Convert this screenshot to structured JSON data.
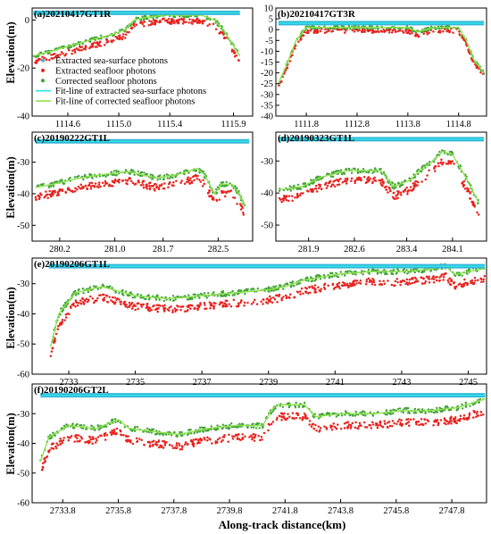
{
  "figure": {
    "xlabel": "Along-track distance(km)",
    "ylabel": "Elevation(m)"
  },
  "legend": {
    "entries": [
      {
        "label": "Extracted sea-surface photons",
        "kind": "dot",
        "color": "#35b7d6"
      },
      {
        "label": "Extracted seafloor photons",
        "kind": "dot",
        "color": "#e8231e"
      },
      {
        "label": "Corrected seafloor photons",
        "kind": "dot",
        "color": "#3fa332"
      },
      {
        "label": "Fit-line of extracted sea-surface photons",
        "kind": "line",
        "color": "#2fe3ea"
      },
      {
        "label": "Fit-line of corrected seafloor photons",
        "kind": "line",
        "color": "#8fe050"
      }
    ]
  },
  "colors": {
    "sea_surface": "#35b7d6",
    "sea_surface_fit": "#2fe3ea",
    "seafloor": "#e8231e",
    "corrected": "#3fa332",
    "corrected_fit": "#8fe050"
  },
  "chart_data": [
    {
      "type": "scatter",
      "title": "(a)20210417GT1R",
      "xticks": [
        "1114.6",
        "1115.0",
        "1115.4",
        "1115.9"
      ],
      "xtick_values": [
        1114.6,
        1115.0,
        1115.4,
        1115.9
      ],
      "xlim": [
        1114.32,
        1116.05
      ],
      "yticks": [
        "-40",
        "-20",
        "0"
      ],
      "ytick_values": [
        -40,
        -20,
        0
      ],
      "ylim": [
        -40,
        5
      ],
      "sea_surface": {
        "x": [
          1114.33,
          1115.95
        ],
        "y": 3.0
      },
      "corrected_fit": {
        "x": [
          1114.33,
          1114.6,
          1114.8,
          1114.95,
          1115.05,
          1115.12,
          1115.2,
          1115.35,
          1115.5,
          1115.65,
          1115.75,
          1115.82,
          1115.88,
          1115.95
        ],
        "y": [
          -15,
          -11,
          -8,
          -6,
          -4,
          0,
          1,
          2,
          2,
          2,
          0,
          -4,
          -9,
          -15
        ]
      },
      "seafloor_offset": -2.5,
      "noise": 1.0
    },
    {
      "type": "scatter",
      "title": "(b)20210417GT3R",
      "xticks": [
        "1111.8",
        "1112.8",
        "1113.8",
        "1114.8"
      ],
      "xtick_values": [
        1111.8,
        1112.8,
        1113.8,
        1114.8
      ],
      "xlim": [
        1111.2,
        1115.35
      ],
      "yticks": [
        "-40",
        "-35",
        "-30",
        "-25",
        "-20",
        "-15",
        "-10",
        "-5",
        "0",
        "5",
        "10"
      ],
      "ytick_values": [
        -40,
        -35,
        -30,
        -25,
        -20,
        -15,
        -10,
        -5,
        0,
        5,
        10
      ],
      "ylim": [
        -40,
        10
      ],
      "sea_surface": {
        "x": [
          1111.25,
          1115.3
        ],
        "y": 3.0
      },
      "corrected_fit": {
        "x": [
          1111.25,
          1111.4,
          1111.6,
          1111.8,
          1112.3,
          1112.8,
          1113.3,
          1113.8,
          1114.0,
          1114.3,
          1114.8,
          1114.95,
          1115.1,
          1115.3
        ],
        "y": [
          -25,
          -17,
          -5,
          1,
          1,
          1,
          1,
          1,
          -1,
          1,
          1,
          -5,
          -14,
          -20
        ]
      },
      "seafloor_offset": -1.5,
      "noise": 0.9
    },
    {
      "type": "scatter",
      "title": "(c)20190222GT1L",
      "xticks": [
        "280.2",
        "281.0",
        "281.7",
        "282.5"
      ],
      "xtick_values": [
        280.2,
        281.0,
        281.7,
        282.5
      ],
      "xlim": [
        279.8,
        283.0
      ],
      "yticks": [
        "-50",
        "-40",
        "-30"
      ],
      "ytick_values": [
        -50,
        -40,
        -30
      ],
      "ylim": [
        -55,
        -20.5
      ],
      "sea_surface": {
        "x": [
          279.85,
          282.95
        ],
        "y": -23.4
      },
      "corrected_fit": {
        "x": [
          279.85,
          280.1,
          280.5,
          280.8,
          281.2,
          281.6,
          281.9,
          282.2,
          282.3,
          282.45,
          282.55,
          282.7,
          282.8,
          282.9
        ],
        "y": [
          -38,
          -37,
          -35,
          -34,
          -33,
          -35,
          -34,
          -32,
          -34,
          -40,
          -37,
          -37,
          -40,
          -44
        ]
      },
      "seafloor_offset": -3.0,
      "noise": 1.0
    },
    {
      "type": "scatter",
      "title": "(d)20190323GT1L",
      "xticks": [
        "281.9",
        "282.6",
        "283.4",
        "284.1"
      ],
      "xtick_values": [
        281.9,
        282.6,
        283.4,
        284.1
      ],
      "xlim": [
        281.4,
        284.62
      ],
      "yticks": [
        "-50",
        "-40",
        "-30"
      ],
      "ytick_values": [
        -50,
        -40,
        -30
      ],
      "ylim": [
        -55,
        -21
      ],
      "sea_surface": {
        "x": [
          281.45,
          284.58
        ],
        "y": -23.2
      },
      "corrected_fit": {
        "x": [
          281.45,
          281.8,
          282.1,
          282.5,
          282.8,
          283.0,
          283.2,
          283.45,
          283.6,
          283.8,
          283.95,
          284.1,
          284.3,
          284.5
        ],
        "y": [
          -39,
          -38,
          -35,
          -33,
          -33,
          -33,
          -38,
          -36,
          -33,
          -30,
          -27,
          -28,
          -35,
          -43
        ]
      },
      "seafloor_offset": -3.0,
      "noise": 1.0
    },
    {
      "type": "scatter",
      "title": "(e)20190206GT1L",
      "xticks": [
        "2733",
        "2735",
        "2737",
        "2739",
        "2741",
        "2743",
        "2745"
      ],
      "xtick_values": [
        2733,
        2735,
        2737,
        2739,
        2741,
        2743,
        2745
      ],
      "xlim": [
        2731.9,
        2745.55
      ],
      "yticks": [
        "-60",
        "-50",
        "-40",
        "-30"
      ],
      "ytick_values": [
        -60,
        -50,
        -40,
        -30
      ],
      "ylim": [
        -60,
        -21.5
      ],
      "sea_surface": {
        "x": [
          2732.4,
          2745.5
        ],
        "y": -24.2
      },
      "corrected_fit": {
        "x": [
          2732.45,
          2732.7,
          2733.2,
          2734.0,
          2735.0,
          2736.0,
          2737.0,
          2738.0,
          2739.0,
          2739.5,
          2740.0,
          2741.0,
          2742.0,
          2743.0,
          2744.0,
          2744.3,
          2744.6,
          2745.0,
          2745.5
        ],
        "y": [
          -51,
          -40,
          -33,
          -31,
          -34,
          -35,
          -34,
          -33,
          -32,
          -31,
          -29,
          -27,
          -26,
          -26,
          -25,
          -24,
          -27,
          -26,
          -25
        ]
      },
      "seafloor_offset": -3.5,
      "noise": 1.1
    },
    {
      "type": "scatter",
      "title": "(f)20190206GT2L",
      "xticks": [
        "2733.8",
        "2735.8",
        "2737.8",
        "2739.8",
        "2741.8",
        "2743.8",
        "2745.8",
        "2747.8"
      ],
      "xtick_values": [
        2733.8,
        2735.8,
        2737.8,
        2739.8,
        2741.8,
        2743.8,
        2745.8,
        2747.8
      ],
      "xlim": [
        2732.7,
        2749.05
      ],
      "yticks": [
        "-60",
        "-50",
        "-40",
        "-30"
      ],
      "ytick_values": [
        -60,
        -50,
        -40,
        -30
      ],
      "ylim": [
        -60,
        -20
      ],
      "sea_surface": {
        "x": [
          2733.0,
          2749.0
        ],
        "y": -23.8
      },
      "corrected_fit": {
        "x": [
          2733.0,
          2733.3,
          2734.0,
          2735.0,
          2735.8,
          2736.2,
          2737.0,
          2738.0,
          2739.0,
          2740.0,
          2741.0,
          2741.3,
          2741.5,
          2742.5,
          2742.9,
          2743.8,
          2745.0,
          2746.0,
          2747.0,
          2748.0,
          2749.0
        ],
        "y": [
          -46,
          -38,
          -34,
          -35,
          -32,
          -35,
          -36,
          -37,
          -35,
          -34,
          -34,
          -29,
          -27,
          -27,
          -31,
          -30,
          -30,
          -29,
          -29,
          -28,
          -25
        ]
      },
      "seafloor_offset": -4.0,
      "noise": 1.1
    }
  ]
}
